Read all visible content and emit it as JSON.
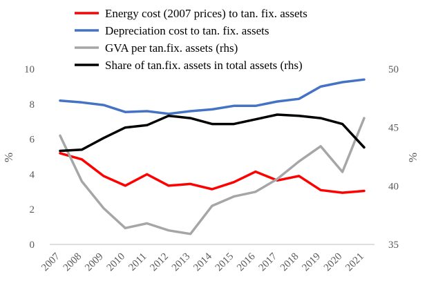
{
  "chart_data": {
    "type": "line",
    "title": "",
    "categories": [
      "2007",
      "2008",
      "2009",
      "2010",
      "2011",
      "2012",
      "2013",
      "2014",
      "2015",
      "2016",
      "2017",
      "2018",
      "2019",
      "2020",
      "2021"
    ],
    "axes": {
      "left": {
        "label": "%",
        "min": 0,
        "max": 10,
        "ticks": [
          0,
          2,
          4,
          6,
          8,
          10
        ]
      },
      "right": {
        "label": "%",
        "min": 35,
        "max": 50,
        "ticks": [
          35,
          40,
          45,
          50
        ]
      }
    },
    "grid": false,
    "legend_position": "top",
    "series": [
      {
        "name": "Energy cost (2007 prices) to tan. fix. assets",
        "axis": "left",
        "color": "#ff0000",
        "values": [
          5.2,
          4.85,
          3.9,
          3.35,
          4.0,
          3.35,
          3.45,
          3.15,
          3.55,
          4.15,
          3.65,
          3.9,
          3.1,
          2.95,
          3.05
        ]
      },
      {
        "name": "Depreciation cost to tan. fix. assets",
        "axis": "left",
        "color": "#4472c4",
        "values": [
          8.2,
          8.1,
          7.95,
          7.55,
          7.6,
          7.45,
          7.6,
          7.7,
          7.9,
          7.9,
          8.15,
          8.3,
          9.0,
          9.25,
          9.4
        ]
      },
      {
        "name": "GVA per tan.fix. assets (rhs)",
        "axis": "right",
        "color": "#a6a6a6",
        "values": [
          44.3,
          40.4,
          38.1,
          36.4,
          36.8,
          36.2,
          35.9,
          38.3,
          39.1,
          39.5,
          40.6,
          42.1,
          43.4,
          41.2,
          45.8
        ]
      },
      {
        "name": "Share of tan.fix. assets in total assets (rhs)",
        "axis": "right",
        "color": "#000000",
        "values": [
          43.0,
          43.1,
          44.1,
          45.0,
          45.2,
          46.0,
          45.8,
          45.3,
          45.3,
          45.7,
          46.1,
          46.0,
          45.8,
          45.3,
          43.3
        ]
      }
    ]
  }
}
